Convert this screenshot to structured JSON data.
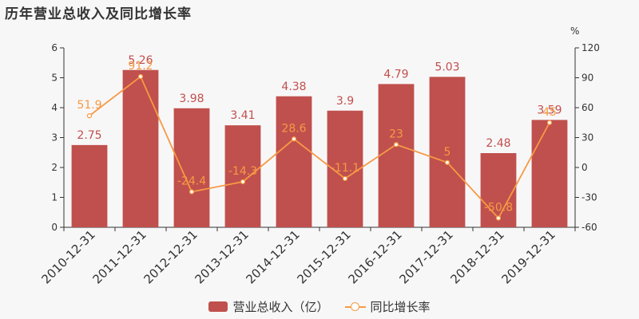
{
  "title": "历年营业总收入及同比增长率",
  "chart_data": {
    "type": "bar",
    "categories": [
      "2010-12-31",
      "2011-12-31",
      "2012-12-31",
      "2013-12-31",
      "2014-12-31",
      "2015-12-31",
      "2016-12-31",
      "2017-12-31",
      "2018-12-31",
      "2019-12-31"
    ],
    "series": [
      {
        "name": "营业总收入（亿）",
        "type": "bar",
        "axis": "left",
        "color": "#c0504d",
        "values": [
          2.75,
          5.26,
          3.98,
          3.41,
          4.38,
          3.9,
          4.79,
          5.03,
          2.48,
          3.59
        ]
      },
      {
        "name": "同比增长率",
        "type": "line",
        "axis": "right",
        "color": "#f59a45",
        "values": [
          51.9,
          91.2,
          -24.4,
          -14.3,
          28.6,
          -11.1,
          23,
          5,
          -50.8,
          45
        ]
      }
    ],
    "left_axis": {
      "min": 0,
      "max": 6,
      "ticks": [
        0,
        1,
        2,
        3,
        4,
        5,
        6
      ]
    },
    "right_axis": {
      "min": -60,
      "max": 120,
      "ticks": [
        -60,
        -30,
        0,
        30,
        60,
        90,
        120
      ],
      "unit": "%"
    },
    "legend_position": "bottom-center"
  }
}
